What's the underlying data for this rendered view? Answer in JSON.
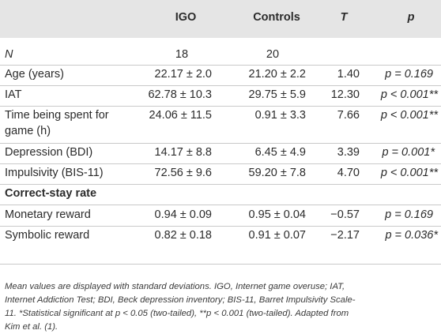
{
  "table": {
    "headers": {
      "group1": "IGO",
      "group2": "Controls",
      "stat": "T",
      "pval": "p"
    },
    "n_row": {
      "label": "N",
      "group1": "18",
      "group2": "20"
    },
    "rows": [
      {
        "label": "Age (years)",
        "group1": "22.17 ± 2.0",
        "group2": "21.20 ± 2.2",
        "stat": "1.40",
        "pval": "p = 0.169"
      },
      {
        "label": "IAT",
        "group1": "62.78 ± 10.3",
        "group2": "29.75 ± 5.9",
        "stat": "12.30",
        "pval": "p < 0.001**"
      },
      {
        "label_line1": "Time being spent for",
        "label_line2": "game (h)",
        "group1": "24.06 ± 11.5",
        "group2": "0.91 ± 3.3",
        "stat": "7.66",
        "pval": "p < 0.001**"
      },
      {
        "label": "Depression (BDI)",
        "group1": "14.17 ± 8.8",
        "group2": "6.45 ± 4.9",
        "stat": "3.39",
        "pval": "p = 0.001*"
      },
      {
        "label": "Impulsivity (BIS-11)",
        "group1": "72.56 ± 9.6",
        "group2": "59.20 ± 7.8",
        "stat": "4.70",
        "pval": "p < 0.001**"
      }
    ],
    "section_title": "Correct-stay rate",
    "section_rows": [
      {
        "label": "Monetary reward",
        "group1": "0.94 ± 0.09",
        "group2": "0.95 ± 0.04",
        "stat": "−0.57",
        "pval": "p = 0.169"
      },
      {
        "label": "Symbolic reward",
        "group1": "0.82 ± 0.18",
        "group2": "0.91 ± 0.07",
        "stat": "−2.17",
        "pval": "p = 0.036*"
      }
    ]
  },
  "footnote": {
    "line1": "Mean values are displayed with standard deviations. IGO, Internet game overuse; IAT,",
    "line2": "Internet Addiction Test; BDI, Beck depression inventory; BIS-11, Barret Impulsivity Scale-",
    "line3": "11. *Statistical significant at p < 0.05 (two-tailed), **p < 0.001 (two-tailed). Adapted from",
    "line4": "Kim et al. (1)."
  }
}
